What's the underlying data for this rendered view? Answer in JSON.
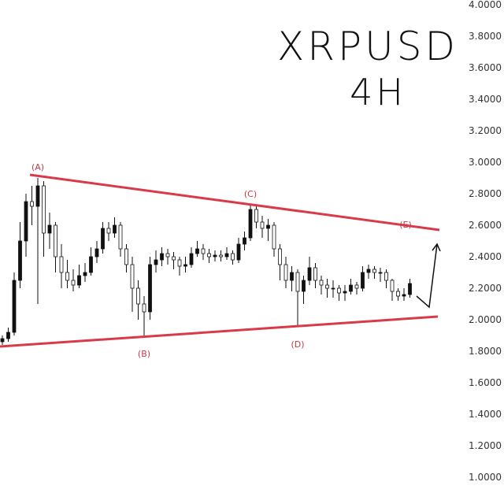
{
  "title": {
    "symbol": "XRPUSD",
    "timeframe": "4H"
  },
  "colors": {
    "trendline": "#d93a4a",
    "label": "#c23a48",
    "candle": "#111111",
    "axis_text": "#333333",
    "arrow": "#111111"
  },
  "chart_data": {
    "type": "candlestick",
    "title": "XRPUSD 4H",
    "ylim": [
      1.0,
      4.0
    ],
    "y_ticks": [
      "4.0000",
      "3.8000",
      "3.6000",
      "3.4000",
      "3.2000",
      "3.0000",
      "2.8000",
      "2.6000",
      "2.4000",
      "2.2000",
      "2.0000",
      "1.8000",
      "1.6000",
      "1.4000",
      "1.2000",
      "1.0000"
    ],
    "y_tick_values": [
      4.0,
      3.8,
      3.6,
      3.4,
      3.2,
      3.0,
      2.8,
      2.6,
      2.4,
      2.2,
      2.0,
      1.8,
      1.6,
      1.4,
      1.2,
      1.0
    ],
    "grid": false,
    "candles": [
      [
        1.86,
        1.9,
        1.84,
        1.88
      ],
      [
        1.88,
        1.95,
        1.86,
        1.92
      ],
      [
        1.92,
        2.3,
        1.9,
        2.25
      ],
      [
        2.25,
        2.62,
        2.2,
        2.5
      ],
      [
        2.5,
        2.8,
        2.4,
        2.75
      ],
      [
        2.75,
        2.85,
        2.6,
        2.72
      ],
      [
        2.72,
        2.9,
        2.1,
        2.85
      ],
      [
        2.85,
        2.88,
        2.4,
        2.55
      ],
      [
        2.55,
        2.68,
        2.45,
        2.6
      ],
      [
        2.6,
        2.62,
        2.3,
        2.4
      ],
      [
        2.4,
        2.48,
        2.2,
        2.3
      ],
      [
        2.3,
        2.38,
        2.2,
        2.25
      ],
      [
        2.25,
        2.32,
        2.18,
        2.22
      ],
      [
        2.22,
        2.35,
        2.2,
        2.28
      ],
      [
        2.28,
        2.36,
        2.24,
        2.3
      ],
      [
        2.3,
        2.46,
        2.28,
        2.4
      ],
      [
        2.4,
        2.5,
        2.36,
        2.45
      ],
      [
        2.45,
        2.62,
        2.42,
        2.58
      ],
      [
        2.58,
        2.62,
        2.5,
        2.55
      ],
      [
        2.55,
        2.65,
        2.52,
        2.6
      ],
      [
        2.6,
        2.62,
        2.4,
        2.45
      ],
      [
        2.45,
        2.48,
        2.3,
        2.35
      ],
      [
        2.35,
        2.4,
        2.05,
        2.2
      ],
      [
        2.2,
        2.25,
        2.0,
        2.1
      ],
      [
        2.1,
        2.15,
        1.9,
        2.05
      ],
      [
        2.05,
        2.4,
        2.0,
        2.35
      ],
      [
        2.35,
        2.44,
        2.3,
        2.38
      ],
      [
        2.38,
        2.46,
        2.34,
        2.42
      ],
      [
        2.42,
        2.45,
        2.35,
        2.4
      ],
      [
        2.4,
        2.43,
        2.32,
        2.38
      ],
      [
        2.38,
        2.4,
        2.28,
        2.34
      ],
      [
        2.34,
        2.4,
        2.3,
        2.35
      ],
      [
        2.35,
        2.46,
        2.33,
        2.42
      ],
      [
        2.42,
        2.5,
        2.4,
        2.45
      ],
      [
        2.45,
        2.48,
        2.38,
        2.42
      ],
      [
        2.42,
        2.45,
        2.36,
        2.4
      ],
      [
        2.4,
        2.44,
        2.37,
        2.41
      ],
      [
        2.41,
        2.44,
        2.37,
        2.4
      ],
      [
        2.4,
        2.46,
        2.38,
        2.42
      ],
      [
        2.42,
        2.44,
        2.35,
        2.38
      ],
      [
        2.38,
        2.52,
        2.36,
        2.48
      ],
      [
        2.48,
        2.56,
        2.44,
        2.52
      ],
      [
        2.52,
        2.73,
        2.5,
        2.7
      ],
      [
        2.7,
        2.72,
        2.58,
        2.62
      ],
      [
        2.62,
        2.66,
        2.52,
        2.58
      ],
      [
        2.58,
        2.64,
        2.5,
        2.6
      ],
      [
        2.6,
        2.62,
        2.4,
        2.45
      ],
      [
        2.45,
        2.48,
        2.25,
        2.35
      ],
      [
        2.35,
        2.4,
        2.2,
        2.25
      ],
      [
        2.25,
        2.34,
        2.18,
        2.3
      ],
      [
        2.3,
        2.32,
        1.96,
        2.18
      ],
      [
        2.18,
        2.28,
        2.1,
        2.25
      ],
      [
        2.25,
        2.4,
        2.22,
        2.33
      ],
      [
        2.33,
        2.36,
        2.2,
        2.25
      ],
      [
        2.25,
        2.28,
        2.16,
        2.22
      ],
      [
        2.22,
        2.26,
        2.14,
        2.2
      ],
      [
        2.2,
        2.25,
        2.14,
        2.2
      ],
      [
        2.2,
        2.22,
        2.12,
        2.17
      ],
      [
        2.17,
        2.22,
        2.12,
        2.18
      ],
      [
        2.18,
        2.26,
        2.16,
        2.22
      ],
      [
        2.22,
        2.24,
        2.16,
        2.2
      ],
      [
        2.2,
        2.34,
        2.18,
        2.3
      ],
      [
        2.3,
        2.35,
        2.26,
        2.32
      ],
      [
        2.32,
        2.34,
        2.26,
        2.3
      ],
      [
        2.3,
        2.33,
        2.24,
        2.3
      ],
      [
        2.3,
        2.32,
        2.2,
        2.25
      ],
      [
        2.25,
        2.26,
        2.12,
        2.18
      ],
      [
        2.18,
        2.2,
        2.12,
        2.15
      ],
      [
        2.15,
        2.2,
        2.12,
        2.16
      ],
      [
        2.16,
        2.26,
        2.14,
        2.23
      ]
    ],
    "trendlines": [
      {
        "name": "upper",
        "from": 2.92,
        "to": 2.57
      },
      {
        "name": "lower",
        "from": 1.83,
        "to": 2.02
      }
    ],
    "wave_labels": [
      {
        "text": "(A)",
        "price": 2.9,
        "candle": 6,
        "position": "above"
      },
      {
        "text": "(B)",
        "price": 1.9,
        "candle": 24,
        "position": "below"
      },
      {
        "text": "(C)",
        "price": 2.73,
        "candle": 42,
        "position": "above"
      },
      {
        "text": "(D)",
        "price": 1.96,
        "candle": 50,
        "position": "below"
      },
      {
        "text": "(E)",
        "price": 2.64,
        "candle": 69,
        "position": "above-line"
      }
    ],
    "projection_arrow": {
      "points_price": [
        2.15,
        2.08,
        2.48
      ]
    }
  }
}
